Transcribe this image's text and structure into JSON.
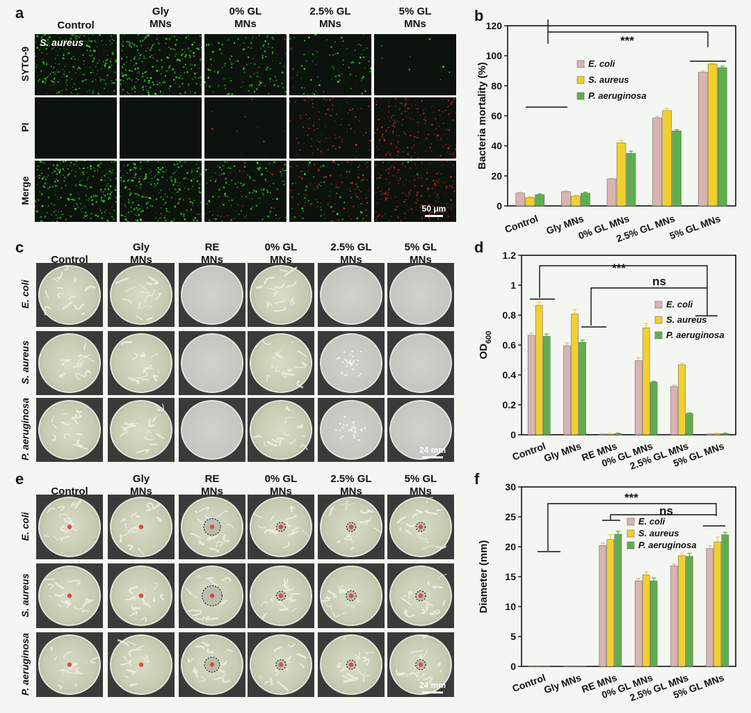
{
  "panel_a": {
    "label": "a",
    "columns": [
      "Control",
      "Gly\nMNs",
      "0% GL\nMNs",
      "2.5% GL\nMNs",
      "5% GL\nMNs"
    ],
    "rows": [
      "SYTO-9",
      "PI",
      "Merge"
    ],
    "organism": "S. aureus",
    "scale": "50 μm"
  },
  "panel_c": {
    "label": "c",
    "columns": [
      "Control",
      "Gly\nMNs",
      "RE\nMNs",
      "0% GL\nMNs",
      "2.5% GL\nMNs",
      "5% GL\nMNs"
    ],
    "rows": [
      "E. coli",
      "S. aureus",
      "P. aeruginosa"
    ],
    "scale": "24 mm"
  },
  "panel_e": {
    "label": "e",
    "columns": [
      "Control",
      "Gly\nMNs",
      "RE\nMNs",
      "0% GL\nMNs",
      "2.5% GL\nMNs",
      "5% GL\nMNs"
    ],
    "rows": [
      "E. coli",
      "S. aureus",
      "P. aeruginosa"
    ],
    "scale": "24 mm"
  },
  "colors": {
    "ecoli": "#d9b3b0",
    "saureus": "#f2d02c",
    "paeruginosa": "#5fae4e"
  },
  "chart_data": [
    {
      "panel": "b",
      "type": "bar",
      "categories": [
        "Control",
        "Gly MNs",
        "0% GL MNs",
        "2.5% GL MNs",
        "5% GL MNs"
      ],
      "series": [
        {
          "name": "E. coli",
          "values": [
            8.5,
            9.5,
            18,
            58.5,
            89
          ],
          "errors": [
            0.6,
            0.7,
            0.5,
            1.0,
            1.0
          ]
        },
        {
          "name": "S. aureus",
          "values": [
            5.5,
            6.5,
            42,
            63.5,
            94.5
          ],
          "errors": [
            0.6,
            0.7,
            1.5,
            1.5,
            0.5
          ]
        },
        {
          "name": "P. aeruginosa",
          "values": [
            7.5,
            8.5,
            35,
            50,
            92
          ],
          "errors": [
            0.6,
            0.6,
            1.5,
            0.8,
            1.0
          ]
        }
      ],
      "xlabel": "",
      "ylabel": "Bacteria mortality (%)",
      "ylim": [
        0,
        120
      ],
      "yticks": [
        0,
        20,
        40,
        60,
        80,
        100,
        120
      ],
      "significance": [
        "***"
      ],
      "legend": "upper-center"
    },
    {
      "panel": "d",
      "type": "bar",
      "categories": [
        "Control",
        "Gly MNs",
        "RE MNs",
        "0% GL MNs",
        "2.5% GL MNs",
        "5% GL MNs"
      ],
      "series": [
        {
          "name": "E. coli",
          "values": [
            0.665,
            0.595,
            0.005,
            0.495,
            0.322,
            0.005
          ],
          "errors": [
            0.015,
            0.02,
            0.003,
            0.02,
            0.01,
            0.003
          ]
        },
        {
          "name": "S. aureus",
          "values": [
            0.865,
            0.808,
            0.005,
            0.715,
            0.468,
            0.008
          ],
          "errors": [
            0.02,
            0.03,
            0.003,
            0.03,
            0.01,
            0.003
          ]
        },
        {
          "name": "P. aeruginosa",
          "values": [
            0.658,
            0.618,
            0.008,
            0.352,
            0.142,
            0.008
          ],
          "errors": [
            0.015,
            0.015,
            0.003,
            0.005,
            0.004,
            0.003
          ]
        }
      ],
      "xlabel": "",
      "ylabel": "OD600",
      "ylabel_main": "OD",
      "ylabel_sub": "600",
      "ylim": [
        0,
        1.2
      ],
      "yticks": [
        0,
        0.2,
        0.4,
        0.6,
        0.8,
        1,
        1.2
      ],
      "significance": [
        "***",
        "ns"
      ],
      "legend": "right"
    },
    {
      "panel": "f",
      "type": "bar",
      "categories": [
        "Control",
        "Gly MNs",
        "RE MNs",
        "0% GL MNs",
        "2.5% GL MNs",
        "5% GL MNs"
      ],
      "series": [
        {
          "name": "E. coli",
          "values": [
            0,
            0,
            20.2,
            14.3,
            16.8,
            19.7
          ],
          "errors": [
            0,
            0,
            0.4,
            0.4,
            0.3,
            0.5
          ]
        },
        {
          "name": "S. aureus",
          "values": [
            0,
            0,
            21.2,
            15.3,
            18.5,
            20.8
          ],
          "errors": [
            0,
            0,
            0.8,
            0.5,
            0.4,
            0.8
          ]
        },
        {
          "name": "P. aeruginosa",
          "values": [
            0,
            0,
            22.1,
            14.3,
            18.4,
            22
          ],
          "errors": [
            0,
            0,
            0.5,
            0.5,
            0.5,
            0.4
          ]
        }
      ],
      "xlabel": "",
      "ylabel": "Diameter (mm)",
      "ylim": [
        0,
        30
      ],
      "yticks": [
        0,
        5,
        10,
        15,
        20,
        25,
        30
      ],
      "significance": [
        "***",
        "ns"
      ],
      "legend": "upper-right"
    }
  ]
}
